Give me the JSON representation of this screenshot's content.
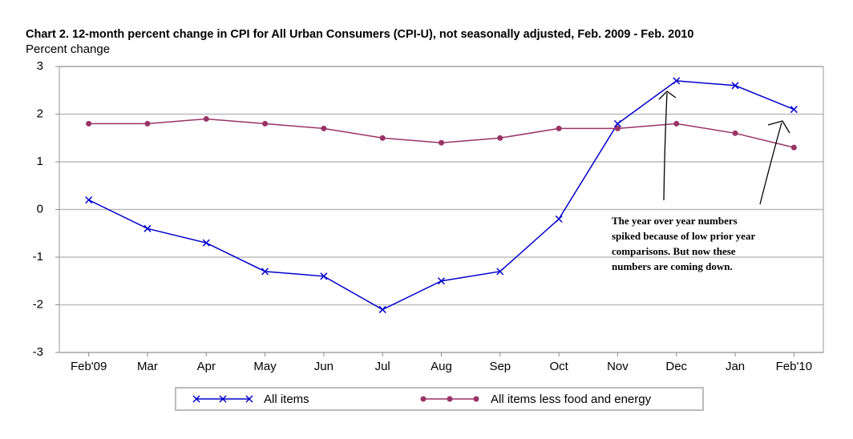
{
  "chart_data": {
    "type": "line",
    "title": "Chart 2. 12-month percent change in CPI for All Urban Consumers (CPI-U), not seasonally adjusted, Feb. 2009 - Feb. 2010",
    "y_label": "Percent change",
    "categories": [
      "Feb'09",
      "Mar",
      "Apr",
      "May",
      "Jun",
      "Jul",
      "Aug",
      "Sep",
      "Oct",
      "Nov",
      "Dec",
      "Jan",
      "Feb'10"
    ],
    "series": [
      {
        "name": "All items",
        "color": "#0000cc",
        "marker": "x",
        "values": [
          0.2,
          -0.4,
          -0.7,
          -1.3,
          -1.4,
          -2.1,
          -1.5,
          -1.3,
          -0.2,
          1.8,
          2.7,
          2.6,
          2.1
        ]
      },
      {
        "name": "All items less food and energy",
        "color": "#993366",
        "marker": "circle",
        "values": [
          1.8,
          1.8,
          1.9,
          1.8,
          1.7,
          1.5,
          1.4,
          1.5,
          1.7,
          1.7,
          1.8,
          1.6,
          1.3
        ]
      }
    ],
    "ylim": [
      -3,
      3
    ],
    "yticks": [
      -3,
      -2,
      -1,
      0,
      1,
      2,
      3
    ],
    "grid": true,
    "legend": "bottom",
    "annotation": [
      "The year over year numbers",
      "spiked because of low prior year",
      "comparisons.  But now these",
      "numbers are coming down."
    ]
  }
}
